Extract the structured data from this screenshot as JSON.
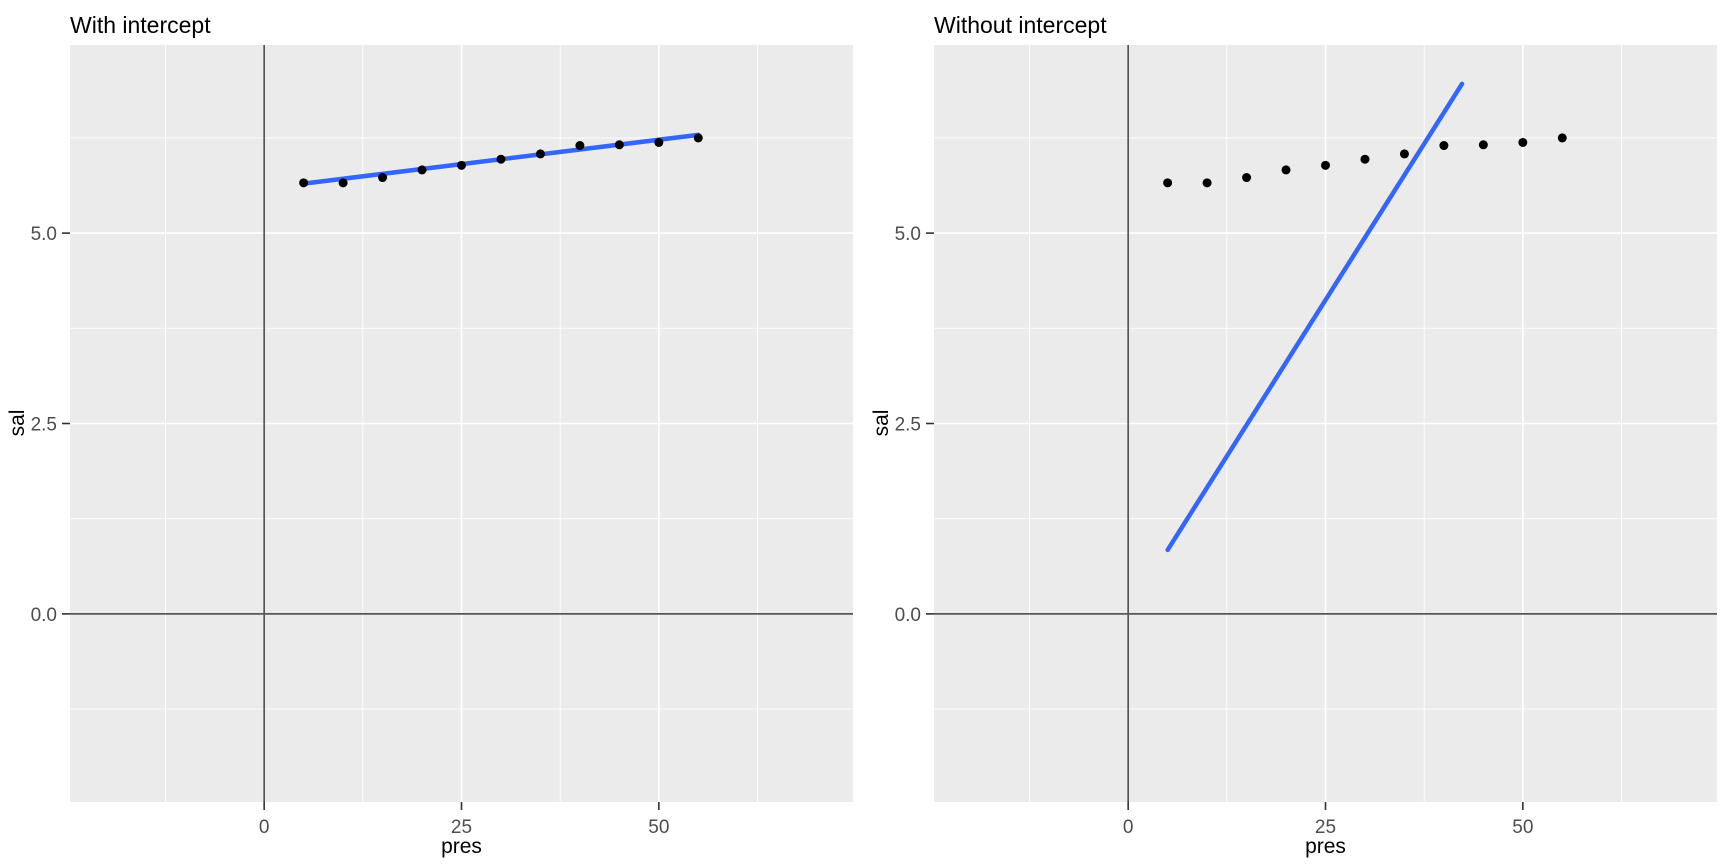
{
  "style": {
    "background": "#FFFFFF",
    "panel_background": "#EBEBEB",
    "grid_color": "#FFFFFF",
    "reference_line_color": "#565656",
    "smooth_line_color": "#3366FF",
    "point_color": "#000000",
    "tick_mark_color": "#333333",
    "tick_label_color": "#4D4D4D",
    "title_color": "#000000"
  },
  "chart_data": [
    {
      "type": "scatter",
      "title": "With intercept",
      "xlabel": "pres",
      "ylabel": "sal",
      "x": [
        5,
        10,
        15,
        20,
        25,
        30,
        35,
        40,
        45,
        50,
        55
      ],
      "y": [
        5.66,
        5.66,
        5.73,
        5.83,
        5.89,
        5.97,
        6.04,
        6.15,
        6.16,
        6.19,
        6.25
      ],
      "x_ticks": [
        0,
        25,
        50
      ],
      "x_tick_labels": [
        "0",
        "25",
        "50"
      ],
      "y_ticks": [
        0,
        2.5,
        5
      ],
      "y_tick_labels": [
        "0.0",
        "2.5",
        "5.0"
      ],
      "x_minor": [
        -12.5,
        12.5,
        37.5,
        62.5
      ],
      "y_minor": [
        -1.25,
        1.25,
        3.75,
        6.25
      ],
      "xlim": [
        -24.6,
        74.6
      ],
      "ylim": [
        -2.47,
        7.47
      ],
      "vline_x": 0,
      "hline_y": 0,
      "grid": true,
      "legend": "none",
      "smooth_line": {
        "x1": 5,
        "y1": 5.65,
        "x2": 55,
        "y2": 6.29
      }
    },
    {
      "type": "scatter",
      "title": "Without intercept",
      "xlabel": "pres",
      "ylabel": "sal",
      "x": [
        5,
        10,
        15,
        20,
        25,
        30,
        35,
        40,
        45,
        50,
        55
      ],
      "y": [
        5.66,
        5.66,
        5.73,
        5.83,
        5.89,
        5.97,
        6.04,
        6.15,
        6.16,
        6.19,
        6.25
      ],
      "x_ticks": [
        0,
        25,
        50
      ],
      "x_tick_labels": [
        "0",
        "25",
        "50"
      ],
      "y_ticks": [
        0,
        2.5,
        5
      ],
      "y_tick_labels": [
        "0.0",
        "2.5",
        "5.0"
      ],
      "x_minor": [
        -12.5,
        12.5,
        37.5,
        62.5
      ],
      "y_minor": [
        -1.25,
        1.25,
        3.75,
        6.25
      ],
      "xlim": [
        -24.6,
        74.6
      ],
      "ylim": [
        -2.47,
        7.47
      ],
      "vline_x": 0,
      "hline_y": 0,
      "grid": true,
      "legend": "none",
      "smooth_line": {
        "x1": 5,
        "y1": 0.84,
        "x2": 42.3,
        "y2": 6.96
      }
    }
  ]
}
